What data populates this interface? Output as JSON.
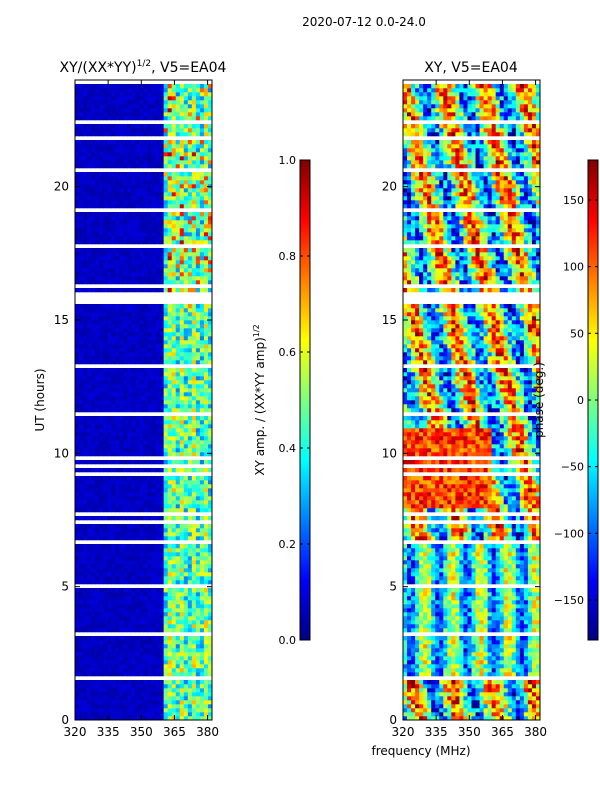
{
  "figure": {
    "suptitle": "2020-07-12 0.0-24.0"
  },
  "colors": {
    "jet": [
      "#00007f",
      "#0000ff",
      "#007fff",
      "#00ffff",
      "#7fff7f",
      "#ffff00",
      "#ff7f00",
      "#ff0000",
      "#7f0000"
    ],
    "gap": "#ffffff",
    "frame": "#000000"
  },
  "chart_data": [
    {
      "type": "heatmap",
      "id": "amp",
      "title_prefix": "XY/(XX*YY)",
      "title_exp": "1/2",
      "title_suffix": ", V5=EA04",
      "xlabel": "",
      "ylabel": "UT (hours)",
      "xlim": [
        320,
        382
      ],
      "ylim": [
        0,
        24
      ],
      "xticks": [
        "320",
        "335",
        "350",
        "365",
        "380"
      ],
      "xtick_values": [
        320,
        335,
        350,
        365,
        380
      ],
      "yticks": [
        "0",
        "5",
        "10",
        "15",
        "20"
      ],
      "ytick_values": [
        0,
        5,
        10,
        15,
        20
      ],
      "signal_band_mhz": [
        360,
        380
      ],
      "gap_intervals_hours": [
        [
          1.45,
          1.7
        ],
        [
          6.6,
          6.8
        ],
        [
          15.7,
          16.1
        ],
        [
          21.7,
          21.95
        ]
      ],
      "colorbar": {
        "label_prefix": "XY amp. / (XX*YY amp)",
        "label_exp": "1/2",
        "vmin": 0.0,
        "vmax": 1.0,
        "ticks": [
          "0.0",
          "0.2",
          "0.4",
          "0.6",
          "0.8",
          "1.0"
        ],
        "tick_values": [
          0.0,
          0.2,
          0.4,
          0.6,
          0.8,
          1.0
        ]
      }
    },
    {
      "type": "heatmap",
      "id": "phase",
      "title": "XY, V5=EA04",
      "xlabel": "frequency (MHz)",
      "ylabel": "",
      "xlim": [
        320,
        382
      ],
      "ylim": [
        0,
        24
      ],
      "xticks": [
        "320",
        "335",
        "350",
        "365",
        "380"
      ],
      "xtick_values": [
        320,
        335,
        350,
        365,
        380
      ],
      "yticks": [
        "0",
        "5",
        "10",
        "15",
        "20"
      ],
      "ytick_values": [
        0,
        5,
        10,
        15,
        20
      ],
      "gap_intervals_hours": [
        [
          1.45,
          1.7
        ],
        [
          6.6,
          6.8
        ],
        [
          15.7,
          16.1
        ],
        [
          21.7,
          21.95
        ]
      ],
      "colorbar": {
        "label": "phase (deg.)",
        "vmin": -180,
        "vmax": 180,
        "ticks": [
          "−150",
          "−100",
          "−50",
          "0",
          "50",
          "100",
          "150"
        ],
        "tick_values": [
          -150,
          -100,
          -50,
          0,
          50,
          100,
          150
        ]
      }
    }
  ]
}
